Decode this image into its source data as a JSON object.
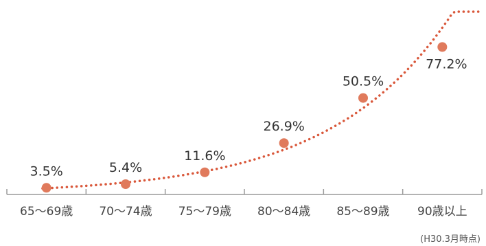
{
  "chart_data": {
    "type": "scatter",
    "categories": [
      "65〜69歳",
      "70〜74歳",
      "75〜79歳",
      "80〜84歳",
      "85〜89歳",
      "90歳以上"
    ],
    "values": [
      3.5,
      5.4,
      11.6,
      26.9,
      50.5,
      77.2
    ],
    "data_labels": [
      "3.5%",
      "5.4%",
      "11.6%",
      "26.9%",
      "50.5%",
      "77.2%"
    ],
    "trendline": "exponential, dotted",
    "ylim": [
      0,
      100
    ],
    "grid": false,
    "note": "(H30.3月時点)",
    "colors": {
      "point": "#e07a5c",
      "trend": "#d9573a",
      "axis": "#9a9a9a"
    }
  }
}
